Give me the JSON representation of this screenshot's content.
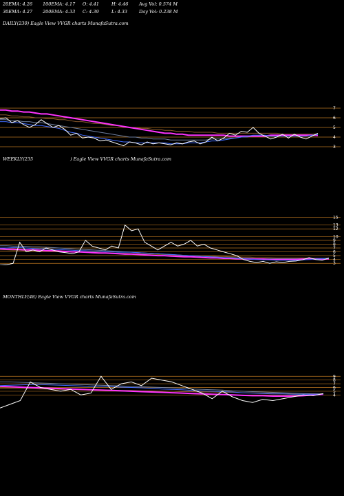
{
  "header": {
    "row1": [
      {
        "label": "20EMA: 4.26"
      },
      {
        "label": "100EMA: 4.17"
      },
      {
        "label": "O: 4.41"
      },
      {
        "label": "H: 4.46"
      },
      {
        "label": "Avg Vol: 0.574  M"
      }
    ],
    "row2": [
      {
        "label": "30EMA: 4.27"
      },
      {
        "label": "200EMA: 4.33"
      },
      {
        "label": "C: 4.39"
      },
      {
        "label": "L: 4.33"
      },
      {
        "label": "Day Vol: 0.238  M"
      }
    ]
  },
  "panels": {
    "daily": {
      "title": "DAILY(230) Eagle   View  VVGR charts MunafaSutra.com"
    },
    "weekly": {
      "title": "WEEKLY(235",
      "title_rest": ") Eagle   View  VVGR charts MunafaSutra.com"
    },
    "monthly": {
      "title": "MONTHLY(48) Eagle   View  VVGR charts MunafaSutra.com"
    }
  },
  "colors": {
    "price": "#ffffff",
    "ema_fast": "#3f6bff",
    "ema_mid": "#6f7f9f",
    "ema_slow": "#8b5a2b",
    "ema_magenta": "#ff33ff",
    "levels": "#b8741f",
    "background": "#000000"
  },
  "chart_data": [
    {
      "type": "line",
      "panel": "daily",
      "ylim": [
        2.5,
        7.5
      ],
      "yticks": [
        "7",
        "6",
        "5",
        "4",
        "3"
      ],
      "levels": [
        7,
        6,
        5,
        4,
        3
      ],
      "series": [
        {
          "role": "price",
          "values": [
            5.9,
            6.0,
            5.5,
            5.7,
            5.3,
            5.0,
            5.3,
            5.8,
            5.4,
            5.0,
            5.2,
            4.8,
            4.2,
            4.4,
            3.9,
            4.0,
            3.9,
            3.6,
            3.7,
            3.5,
            3.3,
            3.1,
            3.5,
            3.4,
            3.2,
            3.5,
            3.3,
            3.4,
            3.3,
            3.2,
            3.4,
            3.3,
            3.5,
            3.6,
            3.3,
            3.5,
            4.0,
            3.6,
            3.9,
            4.4,
            4.2,
            4.6,
            4.5,
            5.0,
            4.4,
            4.1,
            3.8,
            4.0,
            4.3,
            3.9,
            4.3,
            4.0,
            3.8,
            4.1,
            4.39
          ]
        },
        {
          "role": "ema_fast",
          "values": [
            5.6,
            5.6,
            5.5,
            5.5,
            5.4,
            5.3,
            5.2,
            5.2,
            5.1,
            5.0,
            4.9,
            4.7,
            4.5,
            4.4,
            4.2,
            4.1,
            4.0,
            3.9,
            3.8,
            3.7,
            3.6,
            3.5,
            3.5,
            3.4,
            3.4,
            3.4,
            3.4,
            3.4,
            3.4,
            3.3,
            3.3,
            3.3,
            3.4,
            3.4,
            3.4,
            3.5,
            3.6,
            3.6,
            3.7,
            3.8,
            3.9,
            4.0,
            4.1,
            4.2,
            4.2,
            4.2,
            4.1,
            4.1,
            4.1,
            4.1,
            4.1,
            4.1,
            4.1,
            4.2,
            4.26
          ]
        },
        {
          "role": "ema_mid",
          "values": [
            5.8,
            5.8,
            5.7,
            5.7,
            5.6,
            5.6,
            5.5,
            5.5,
            5.4,
            5.3,
            5.2,
            5.1,
            5.0,
            4.9,
            4.8,
            4.7,
            4.6,
            4.5,
            4.4,
            4.3,
            4.2,
            4.1,
            4.0,
            4.0,
            3.9,
            3.9,
            3.8,
            3.8,
            3.8,
            3.7,
            3.7,
            3.7,
            3.7,
            3.7,
            3.7,
            3.7,
            3.8,
            3.8,
            3.8,
            3.9,
            3.9,
            4.0,
            4.0,
            4.1,
            4.1,
            4.1,
            4.1,
            4.1,
            4.2,
            4.2,
            4.2,
            4.2,
            4.2,
            4.2,
            4.27
          ]
        },
        {
          "role": "ema_slow",
          "values": [
            6.3,
            6.3,
            6.2,
            6.2,
            6.1,
            6.1,
            6.0,
            6.0,
            5.9,
            5.9,
            5.8,
            5.8,
            5.7,
            5.6,
            5.6,
            5.5,
            5.4,
            5.4,
            5.3,
            5.2,
            5.2,
            5.1,
            5.0,
            5.0,
            4.9,
            4.9,
            4.8,
            4.8,
            4.7,
            4.7,
            4.6,
            4.6,
            4.6,
            4.5,
            4.5,
            4.5,
            4.5,
            4.4,
            4.4,
            4.4,
            4.4,
            4.4,
            4.4,
            4.4,
            4.4,
            4.4,
            4.4,
            4.4,
            4.3,
            4.3,
            4.3,
            4.3,
            4.3,
            4.3,
            4.33
          ]
        },
        {
          "role": "ema_magenta",
          "values": [
            6.8,
            6.8,
            6.7,
            6.7,
            6.6,
            6.6,
            6.5,
            6.4,
            6.4,
            6.3,
            6.2,
            6.1,
            6.0,
            5.9,
            5.8,
            5.7,
            5.6,
            5.5,
            5.4,
            5.3,
            5.2,
            5.1,
            5.0,
            4.9,
            4.8,
            4.7,
            4.6,
            4.5,
            4.4,
            4.4,
            4.3,
            4.3,
            4.2,
            4.2,
            4.2,
            4.2,
            4.2,
            4.2,
            4.2,
            4.1,
            4.1,
            4.1,
            4.1,
            4.1,
            4.1,
            4.1,
            4.2,
            4.2,
            4.2,
            4.2,
            4.2,
            4.2,
            4.2,
            4.2,
            4.17
          ]
        }
      ]
    },
    {
      "type": "line",
      "panel": "weekly",
      "ylim": [
        2.5,
        16
      ],
      "yticks": [
        "15",
        "13",
        "12",
        "10",
        "9",
        "8",
        "7",
        "6",
        "5",
        "4",
        "3"
      ],
      "levels": [
        15,
        13,
        12,
        10,
        9,
        8,
        7,
        6,
        5,
        4,
        3
      ],
      "series": [
        {
          "role": "price",
          "values": [
            2.5,
            2.6,
            3.0,
            8.5,
            6.0,
            6.5,
            6.0,
            7.0,
            6.5,
            6.0,
            5.8,
            5.5,
            6.0,
            9.0,
            7.5,
            7.0,
            6.5,
            7.5,
            7.0,
            13.0,
            11.5,
            12.0,
            8.5,
            7.5,
            6.5,
            7.5,
            8.5,
            7.5,
            8.0,
            9.0,
            7.5,
            8.0,
            7.0,
            6.5,
            6.0,
            5.5,
            5.0,
            4.0,
            3.5,
            3.2,
            3.5,
            3.0,
            3.4,
            3.2,
            3.5,
            3.6,
            3.9,
            4.5,
            4.0,
            3.8,
            4.39
          ]
        },
        {
          "role": "ema_fast",
          "values": [
            7.0,
            7.0,
            7.1,
            7.1,
            7.0,
            6.9,
            6.8,
            6.8,
            6.7,
            6.6,
            6.5,
            6.4,
            6.3,
            6.3,
            6.2,
            6.1,
            6.0,
            6.0,
            5.9,
            5.9,
            5.9,
            5.8,
            5.7,
            5.6,
            5.5,
            5.4,
            5.3,
            5.2,
            5.1,
            5.0,
            4.9,
            4.8,
            4.7,
            4.6,
            4.5,
            4.4,
            4.3,
            4.2,
            4.1,
            4.0,
            3.9,
            3.9,
            3.8,
            3.8,
            3.8,
            3.8,
            3.9,
            4.0,
            4.1,
            4.2,
            4.26
          ]
        },
        {
          "role": "ema_mid",
          "values": [
            7.6,
            7.6,
            7.5,
            7.5,
            7.4,
            7.3,
            7.3,
            7.2,
            7.1,
            7.0,
            6.9,
            6.8,
            6.7,
            6.6,
            6.5,
            6.4,
            6.3,
            6.2,
            6.1,
            6.0,
            5.9,
            5.8,
            5.7,
            5.6,
            5.5,
            5.4,
            5.3,
            5.2,
            5.1,
            5.0,
            4.9,
            4.8,
            4.7,
            4.6,
            4.5,
            4.5,
            4.4,
            4.3,
            4.3,
            4.2,
            4.2,
            4.2,
            4.2,
            4.2,
            4.2,
            4.2,
            4.2,
            4.2,
            4.3,
            4.3,
            4.27
          ]
        },
        {
          "role": "ema_slow",
          "values": [
            6.5,
            6.5,
            6.4,
            6.4,
            6.3,
            6.3,
            6.2,
            6.2,
            6.1,
            6.1,
            6.0,
            6.0,
            5.9,
            5.9,
            5.8,
            5.8,
            5.7,
            5.7,
            5.6,
            5.6,
            5.5,
            5.5,
            5.4,
            5.4,
            5.3,
            5.3,
            5.2,
            5.1,
            5.1,
            5.0,
            5.0,
            4.9,
            4.9,
            4.8,
            4.8,
            4.7,
            4.7,
            4.6,
            4.6,
            4.5,
            4.5,
            4.5,
            4.4,
            4.4,
            4.4,
            4.4,
            4.4,
            4.3,
            4.3,
            4.3,
            4.33
          ]
        },
        {
          "role": "ema_magenta",
          "values": [
            6.8,
            6.7,
            6.7,
            6.6,
            6.5,
            6.5,
            6.4,
            6.3,
            6.3,
            6.2,
            6.1,
            6.0,
            6.0,
            5.9,
            5.8,
            5.7,
            5.7,
            5.6,
            5.5,
            5.4,
            5.4,
            5.3,
            5.2,
            5.1,
            5.0,
            5.0,
            4.9,
            4.8,
            4.7,
            4.7,
            4.6,
            4.5,
            4.4,
            4.4,
            4.3,
            4.3,
            4.2,
            4.2,
            4.1,
            4.1,
            4.1,
            4.0,
            4.0,
            4.0,
            4.0,
            4.0,
            4.1,
            4.1,
            4.1,
            4.1,
            4.17
          ]
        }
      ]
    },
    {
      "type": "line",
      "panel": "monthly",
      "ylim": [
        0,
        12
      ],
      "yticks": [
        "9",
        "8",
        "7",
        "6",
        "5",
        "4"
      ],
      "levels": [
        9,
        8,
        7,
        6,
        5,
        4
      ],
      "series": [
        {
          "role": "price",
          "values": [
            0.5,
            1.5,
            2.5,
            7.5,
            6.0,
            5.5,
            5.0,
            5.5,
            4.0,
            4.5,
            9.0,
            5.5,
            7.0,
            7.5,
            6.5,
            8.5,
            8.0,
            7.5,
            6.5,
            5.5,
            4.5,
            3.0,
            5.0,
            3.5,
            2.5,
            2.0,
            2.8,
            2.5,
            3.0,
            3.5,
            4.0,
            3.8,
            4.39
          ]
        },
        {
          "role": "ema_fast",
          "values": [
            6.5,
            6.6,
            6.7,
            6.8,
            6.8,
            6.7,
            6.6,
            6.5,
            6.4,
            6.3,
            6.3,
            6.2,
            6.1,
            6.0,
            5.9,
            5.8,
            5.6,
            5.5,
            5.4,
            5.2,
            5.1,
            5.0,
            4.9,
            4.8,
            4.6,
            4.5,
            4.4,
            4.3,
            4.3,
            4.2,
            4.2,
            4.2,
            4.26
          ]
        },
        {
          "role": "ema_mid",
          "values": [
            7.5,
            7.5,
            7.4,
            7.3,
            7.2,
            7.1,
            7.0,
            6.9,
            6.8,
            6.7,
            6.6,
            6.5,
            6.4,
            6.3,
            6.2,
            6.1,
            6.0,
            5.9,
            5.8,
            5.6,
            5.5,
            5.4,
            5.3,
            5.1,
            5.0,
            4.9,
            4.8,
            4.7,
            4.6,
            4.5,
            4.4,
            4.3,
            4.27
          ]
        },
        {
          "role": "ema_slow",
          "values": [
            5.8,
            5.8,
            5.7,
            5.7,
            5.6,
            5.6,
            5.5,
            5.5,
            5.4,
            5.4,
            5.3,
            5.3,
            5.2,
            5.2,
            5.1,
            5.1,
            5.0,
            5.0,
            4.9,
            4.9,
            4.8,
            4.8,
            4.7,
            4.7,
            4.6,
            4.6,
            4.5,
            4.5,
            4.5,
            4.4,
            4.4,
            4.4,
            4.33
          ]
        },
        {
          "role": "ema_magenta",
          "values": [
            6.3,
            6.2,
            6.1,
            6.0,
            5.9,
            5.8,
            5.7,
            5.6,
            5.5,
            5.4,
            5.3,
            5.2,
            5.1,
            5.0,
            4.9,
            4.8,
            4.7,
            4.6,
            4.5,
            4.4,
            4.3,
            4.2,
            4.1,
            4.0,
            3.9,
            3.8,
            3.8,
            3.7,
            3.7,
            3.7,
            3.8,
            4.0,
            4.17
          ]
        }
      ]
    }
  ]
}
